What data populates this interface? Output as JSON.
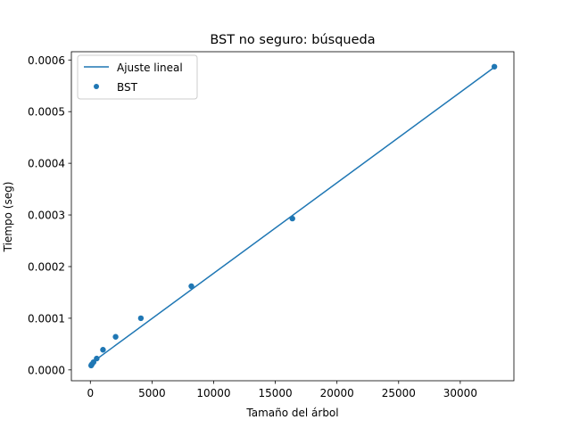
{
  "chart_data": {
    "type": "scatter",
    "title": "BST no seguro: búsqueda",
    "xlabel": "Tamaño del árbol",
    "ylabel": "Tiempo (seg)",
    "xlim": [
      -1540,
      34350
    ],
    "ylim": [
      -2.1e-05,
      0.000616
    ],
    "x_ticks": [
      0,
      5000,
      10000,
      15000,
      20000,
      25000,
      30000
    ],
    "x_tick_labels": [
      "0",
      "5000",
      "10000",
      "15000",
      "20000",
      "25000",
      "30000"
    ],
    "y_ticks": [
      0,
      0.0001,
      0.0002,
      0.0003,
      0.0004,
      0.0005,
      0.0006
    ],
    "y_tick_labels": [
      "0.0000",
      "0.0001",
      "0.0002",
      "0.0003",
      "0.0004",
      "0.0005",
      "0.0006"
    ],
    "grid": false,
    "legend_position": "upper-left",
    "series": [
      {
        "name": "Ajuste lineal",
        "kind": "line",
        "color": "#1f77b4",
        "x": [
          0,
          32768
        ],
        "y": [
          1.18e-05,
          0.000586
        ]
      },
      {
        "name": "BST",
        "kind": "scatter",
        "color": "#1f77b4",
        "x": [
          64,
          128,
          256,
          512,
          1024,
          2048,
          4096,
          8192,
          16384,
          32768
        ],
        "y": [
          8.5e-06,
          1.1e-05,
          1.5e-05,
          2.2e-05,
          3.9e-05,
          6.4e-05,
          0.0001,
          0.000162,
          0.000293,
          0.000587
        ]
      }
    ]
  }
}
